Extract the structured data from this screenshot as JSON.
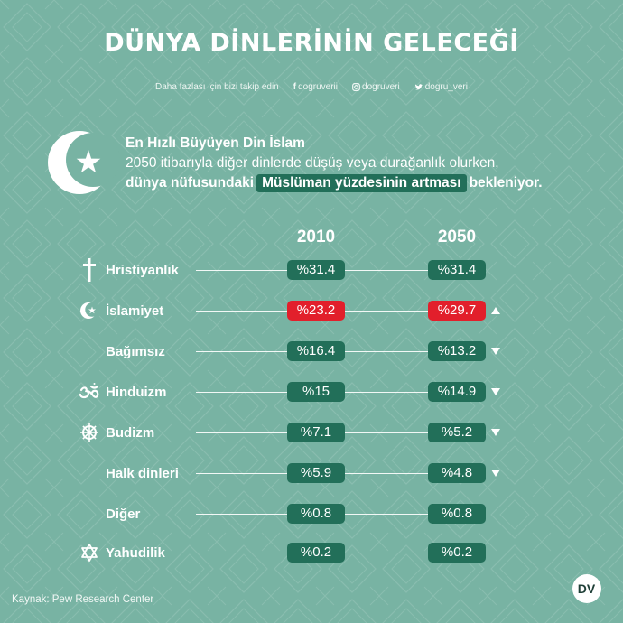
{
  "title": "DÜNYA DİNLERİNİN GELECEĞİ",
  "follow": {
    "text": "Daha fazlası için bizi takip edin",
    "facebook": "dogruverii",
    "instagram": "dogruveri",
    "twitter": "dogru_veri"
  },
  "intro": {
    "heading": "En Hızlı Büyüyen Din İslam",
    "line2": "2050 itibarıyla diğer dinlerde düşüş veya durağanlık olurken,",
    "line3_pre": "dünya nüfusundaki",
    "line3_highlight": "Müslüman yüzdesinin artması",
    "line3_post": "bekleniyor."
  },
  "source": "Kaynak: Pew Research Center",
  "logo_text": "DV",
  "colors": {
    "background": "#78b3a3",
    "pill": "#226f59",
    "highlight_red": "#e21f2b",
    "text": "#ffffff"
  },
  "chart_data": {
    "type": "table",
    "columns": [
      "2010",
      "2050"
    ],
    "unit": "%",
    "rows": [
      {
        "label": "Hristiyanlık",
        "icon": "cross-icon",
        "v2010": "%31.4",
        "v2050": "%31.4",
        "trend": "none",
        "highlight": false
      },
      {
        "label": "İslamiyet",
        "icon": "crescent-star-icon",
        "v2010": "%23.2",
        "v2050": "%29.7",
        "trend": "up",
        "highlight": true
      },
      {
        "label": "Bağımsız",
        "icon": "",
        "v2010": "%16.4",
        "v2050": "%13.2",
        "trend": "down",
        "highlight": false
      },
      {
        "label": "Hinduizm",
        "icon": "om-icon",
        "v2010": "%15",
        "v2050": "%14.9",
        "trend": "down",
        "highlight": false
      },
      {
        "label": "Budizm",
        "icon": "dharma-wheel-icon",
        "v2010": "%7.1",
        "v2050": "%5.2",
        "trend": "down",
        "highlight": false
      },
      {
        "label": "Halk dinleri",
        "icon": "",
        "v2010": "%5.9",
        "v2050": "%4.8",
        "trend": "down",
        "highlight": false
      },
      {
        "label": "Diğer",
        "icon": "",
        "v2010": "%0.8",
        "v2050": "%0.8",
        "trend": "none",
        "highlight": false
      },
      {
        "label": "Yahudilik",
        "icon": "star-of-david-icon",
        "v2010": "%0.2",
        "v2050": "%0.2",
        "trend": "none",
        "highlight": false
      }
    ]
  }
}
